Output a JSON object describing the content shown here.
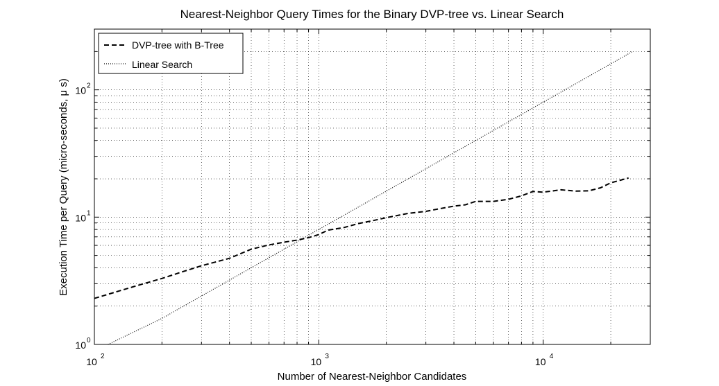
{
  "chart_data": {
    "type": "line",
    "title": "Nearest-Neighbor Query Times for the Binary DVP-tree vs. Linear Search",
    "xlabel": "Number of Nearest-Neighbor Candidates",
    "ylabel": "Execution Time per Query (micro-seconds, μ s)",
    "xscale": "log",
    "yscale": "log",
    "xlim": [
      100,
      30000
    ],
    "ylim": [
      1,
      300
    ],
    "xticks": [
      {
        "value": 100,
        "base": "10",
        "exp": "2"
      },
      {
        "value": 1000,
        "base": "10",
        "exp": "3"
      },
      {
        "value": 10000,
        "base": "10",
        "exp": "4"
      }
    ],
    "yticks": [
      {
        "value": 1,
        "base": "10",
        "exp": "0"
      },
      {
        "value": 10,
        "base": "10",
        "exp": "1"
      },
      {
        "value": 100,
        "base": "10",
        "exp": "2"
      }
    ],
    "grid": true,
    "legend": "top-left",
    "series": [
      {
        "name": "DVP-tree with B-Tree",
        "style": "dashed",
        "color": "#000000",
        "x": [
          100,
          150,
          200,
          250,
          300,
          400,
          500,
          600,
          700,
          800,
          900,
          1000,
          1100,
          1300,
          1500,
          1700,
          2000,
          2500,
          3000,
          3500,
          4000,
          4500,
          5000,
          6000,
          7000,
          8000,
          9000,
          10000,
          12000,
          14000,
          16000,
          18000,
          20000,
          24000
        ],
        "y": [
          2.3,
          2.85,
          3.3,
          3.75,
          4.15,
          4.75,
          5.6,
          6.05,
          6.35,
          6.6,
          6.9,
          7.3,
          7.9,
          8.3,
          8.9,
          9.3,
          9.9,
          10.7,
          11.1,
          11.7,
          12.2,
          12.5,
          13.3,
          13.3,
          13.8,
          14.7,
          15.9,
          15.7,
          16.4,
          16.0,
          16.1,
          17.0,
          18.6,
          20.3
        ]
      },
      {
        "name": "Linear Search",
        "style": "dotted",
        "color": "#000000",
        "x": [
          115,
          200,
          500,
          1000,
          2000,
          5000,
          10000,
          25000
        ],
        "y": [
          1.0,
          1.6,
          4.0,
          8.0,
          16.0,
          40.0,
          80.0,
          200.0
        ]
      }
    ]
  }
}
